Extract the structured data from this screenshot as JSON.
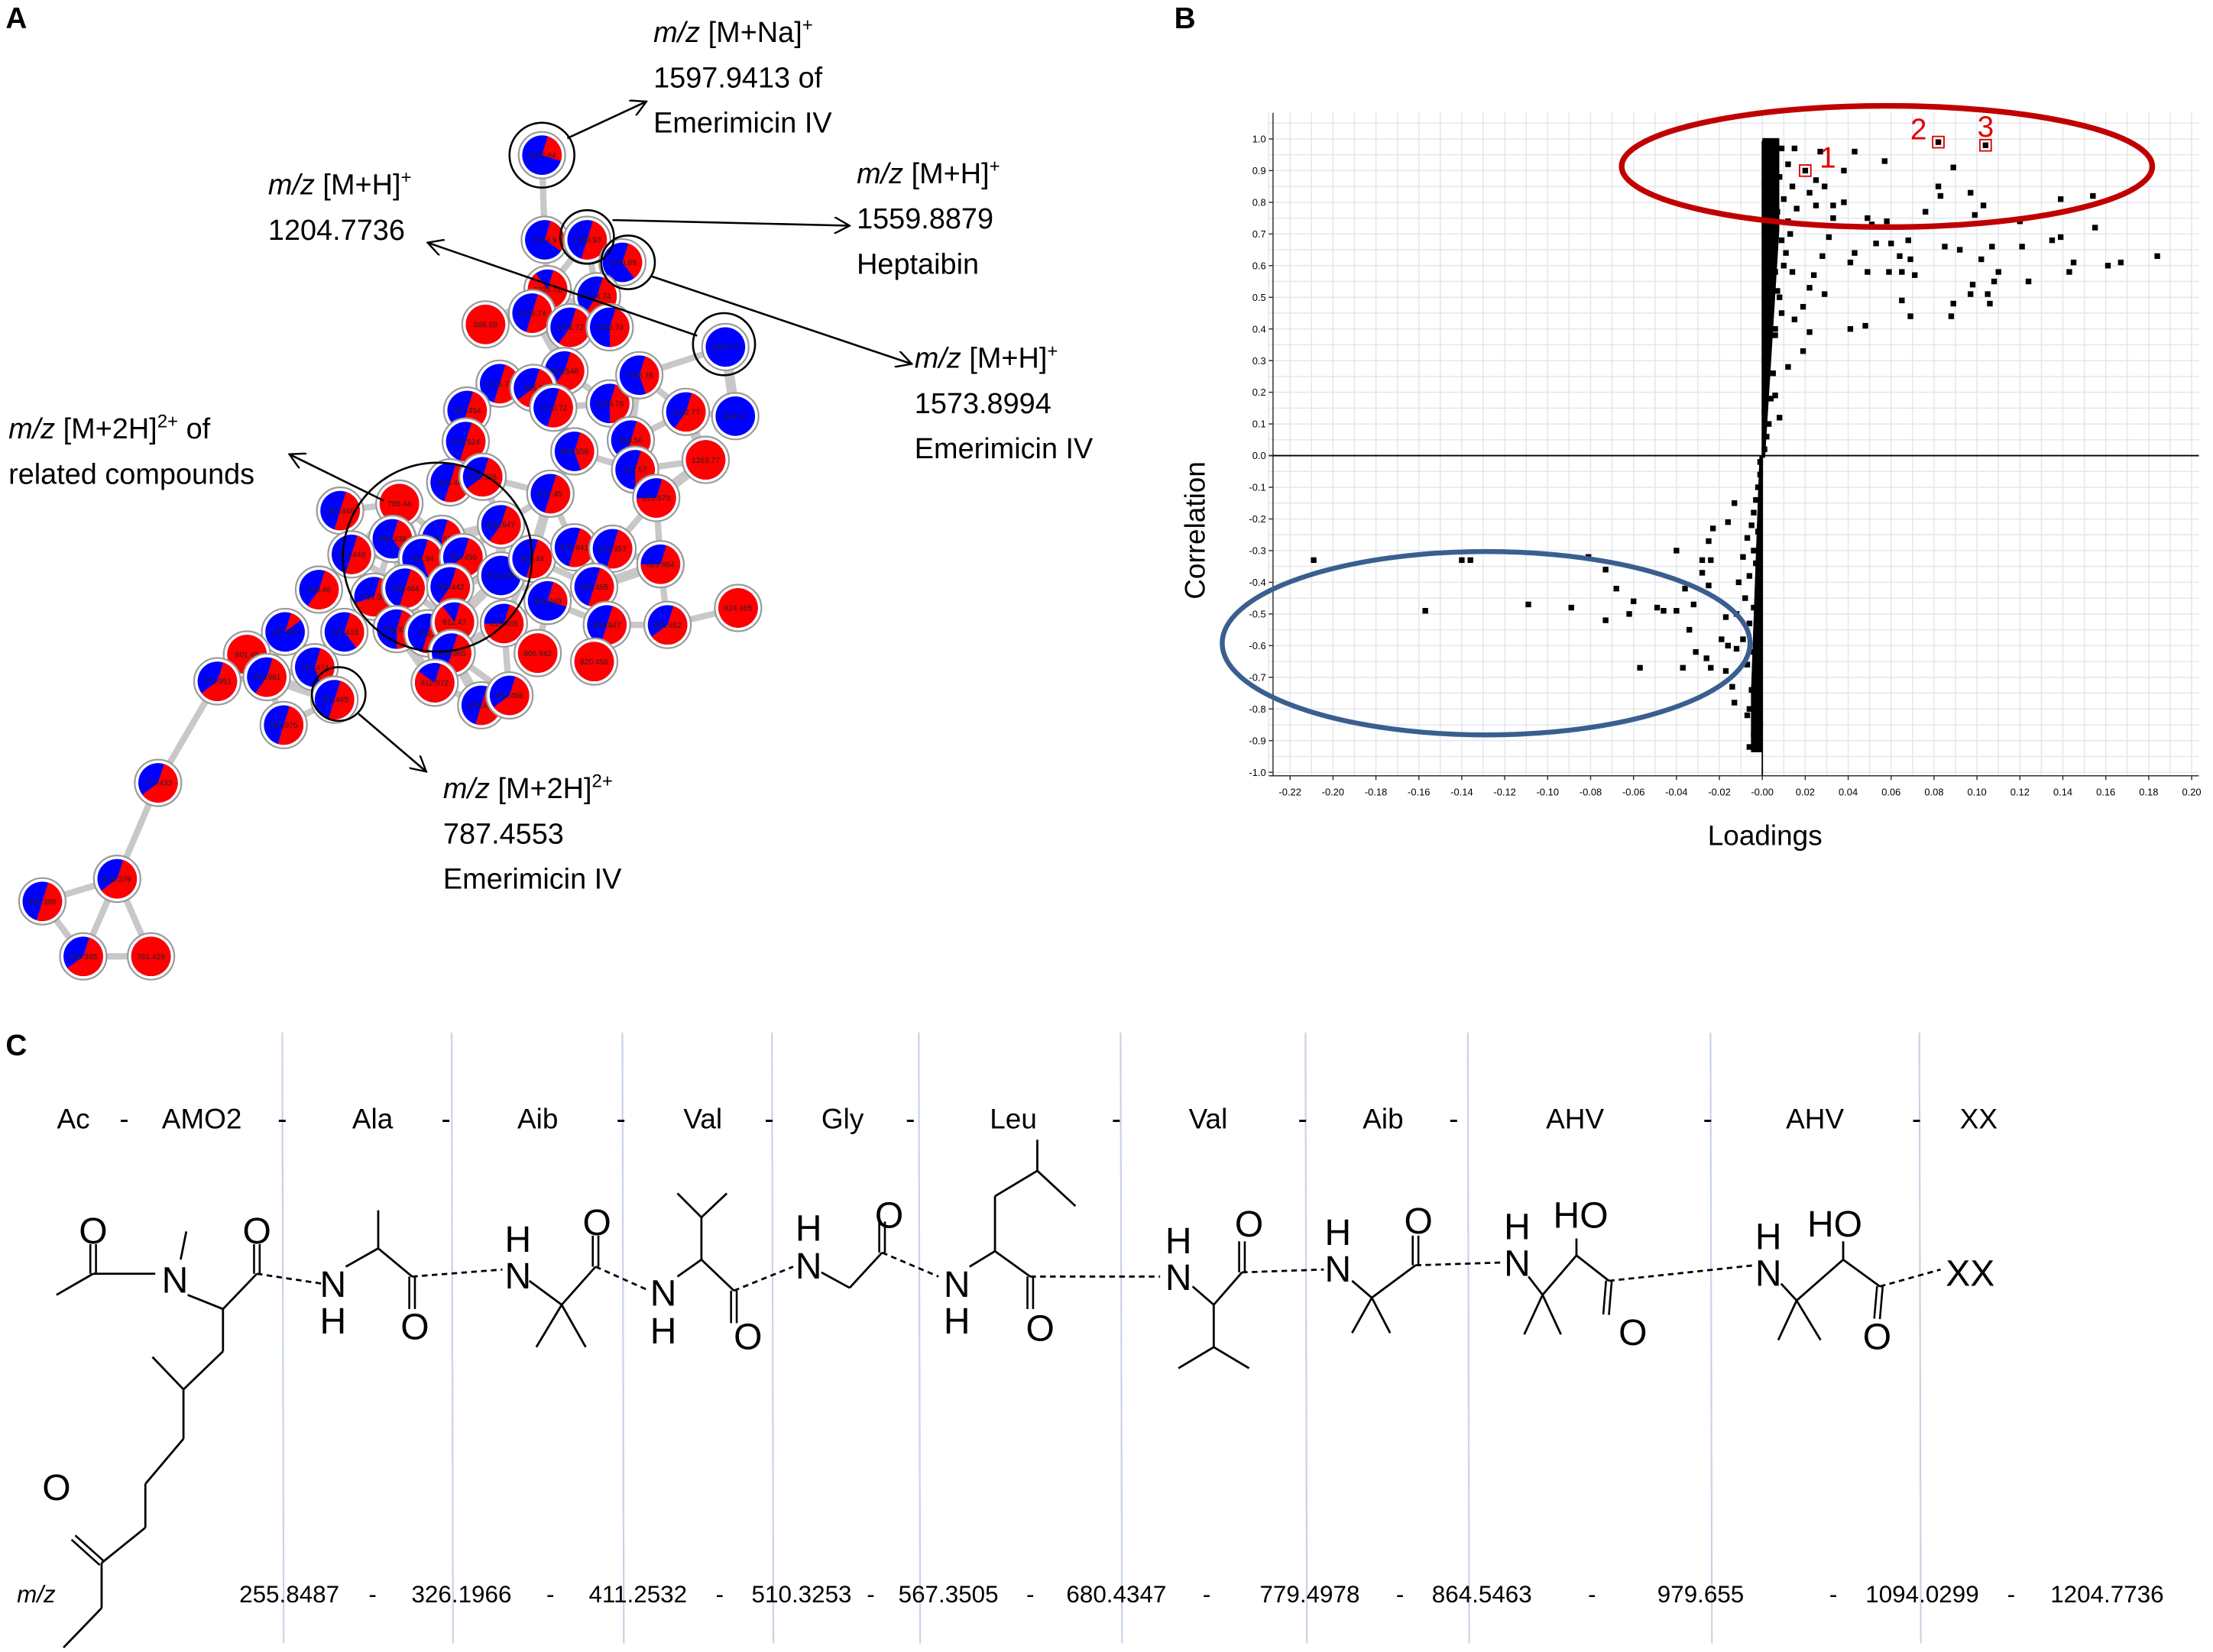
{
  "panels": {
    "a": "A",
    "b": "B",
    "c": "C"
  },
  "network": {
    "nodes": [
      {
        "label": "1597.94",
        "red": 0.25
      },
      {
        "label": "1574.9",
        "red": 0.3
      },
      {
        "label": "1559.93",
        "red": 0.5
      },
      {
        "label": "1573.89",
        "red": 0.35
      },
      {
        "label": "1226.72",
        "red": 0.85
      },
      {
        "label": "1224.74",
        "red": 0.55
      },
      {
        "label": "885.59",
        "red": 1.0
      },
      {
        "label": "1225.74",
        "red": 0.5
      },
      {
        "label": "1211.72",
        "red": 0.55
      },
      {
        "label": "1226.74",
        "red": 0.45
      },
      {
        "label": "1204.77",
        "red": 0.0
      },
      {
        "label": "884.546",
        "red": 0.55
      },
      {
        "label": "1211.72",
        "red": 0.5
      },
      {
        "label": "885.5",
        "red": 0.6
      },
      {
        "label": "1210.72",
        "red": 0.5
      },
      {
        "label": "1239.76",
        "red": 0.45
      },
      {
        "label": "1236.76",
        "red": 0.4
      },
      {
        "label": "1252.77",
        "red": 0.55
      },
      {
        "label": "864.57",
        "red": 0.0
      },
      {
        "label": "817.454",
        "red": 0.5
      },
      {
        "label": "870.524",
        "red": 0.5
      },
      {
        "label": "898.56",
        "red": 0.5
      },
      {
        "label": "809.558",
        "red": 0.4
      },
      {
        "label": "1263.77",
        "red": 1.0
      },
      {
        "label": "912.57",
        "red": 0.45
      },
      {
        "label": "913.673",
        "red": 0.7
      },
      {
        "label": "817.45",
        "red": 0.5
      },
      {
        "label": "803.44",
        "red": 0.5
      },
      {
        "label": "871.526",
        "red": 0.6
      },
      {
        "label": "785.44",
        "red": 1.0
      },
      {
        "label": "792.446",
        "red": 0.5
      },
      {
        "label": "802.947",
        "red": 0.55
      },
      {
        "label": "784.438",
        "red": 0.35
      },
      {
        "label": "799.933",
        "red": 0.45
      },
      {
        "label": "781.446",
        "red": 0.5
      },
      {
        "label": "784.94",
        "red": 0.4
      },
      {
        "label": "797.456",
        "red": 0.6
      },
      {
        "label": "813.498",
        "red": 0.0
      },
      {
        "label": "802.44",
        "red": 0.5
      },
      {
        "label": "813.941",
        "red": 0.5
      },
      {
        "label": "816.957",
        "red": 0.5
      },
      {
        "label": "823.964",
        "red": 0.7
      },
      {
        "label": "780.46",
        "red": 0.55
      },
      {
        "label": "791.95",
        "red": 0.65
      },
      {
        "label": "799.464",
        "red": 0.5
      },
      {
        "label": "799.442",
        "red": 0.55
      },
      {
        "label": "809.949",
        "red": 0.25
      },
      {
        "label": "816.455",
        "red": 0.5
      },
      {
        "label": "795.418",
        "red": 0.35
      },
      {
        "label": "795.934",
        "red": 0.45
      },
      {
        "label": "798.9",
        "red": 0.5
      },
      {
        "label": "812.47",
        "red": 0.85
      },
      {
        "label": "813.465",
        "red": 0.7
      },
      {
        "label": "806.947",
        "red": 0.5
      },
      {
        "label": "823.462",
        "red": 0.6
      },
      {
        "label": "824.465",
        "red": 1.0
      },
      {
        "label": "805.965",
        "red": 0.5
      },
      {
        "label": "806.942",
        "red": 1.0
      },
      {
        "label": "820.456",
        "red": 1.0
      },
      {
        "label": "812.972",
        "red": 0.8
      },
      {
        "label": "805.464",
        "red": 0.5
      },
      {
        "label": "800.456",
        "red": 0.6
      },
      {
        "label": "787.967",
        "red": 0.1
      },
      {
        "label": "801.48",
        "red": 1.0
      },
      {
        "label": "773.951",
        "red": 0.6
      },
      {
        "label": "780.961",
        "red": 0.55
      },
      {
        "label": "794.474",
        "red": 0.4
      },
      {
        "label": "787.465",
        "red": 0.5
      },
      {
        "label": "784.975",
        "red": 0.5
      },
      {
        "label": "773.433",
        "red": 0.6
      },
      {
        "label": "676.379",
        "red": 0.6
      },
      {
        "label": "691.396",
        "red": 0.5
      },
      {
        "label": "690.395",
        "red": 0.6
      },
      {
        "label": "761.429",
        "red": 1.0
      }
    ],
    "annotations": [
      {
        "mz": "m/z",
        "ion": " [M+Na]",
        "charge": "+",
        "l2": "1597.9413 of",
        "l3": "Emerimicin IV"
      },
      {
        "mz": "m/z",
        "ion": " [M+H]",
        "charge": "+",
        "l2": "1204.7736",
        "l3": ""
      },
      {
        "mz": "m/z",
        "ion": " [M+H]",
        "charge": "+",
        "l2": "1559.8879",
        "l3": "Heptaibin"
      },
      {
        "mz": "m/z",
        "ion": " [M+H]",
        "charge": "+",
        "l2": "1573.8994",
        "l3": "Emerimicin IV"
      },
      {
        "mz": "m/z",
        "ion": " [M+2H]",
        "charge": "2+",
        "suffix": " of",
        "l2": "related compounds",
        "l3": ""
      },
      {
        "mz": "m/z",
        "ion": " [M+2H]",
        "charge": "2+",
        "l2": "787.4553",
        "l3": "Emerimicin IV"
      }
    ],
    "colors": {
      "a": "#ff0000",
      "b": "#0000ff",
      "edge": "#c8c8c8"
    }
  },
  "chart_data": {
    "type": "scatter",
    "title": "",
    "xlabel": "Loadings",
    "ylabel": "Correlation",
    "xlim": [
      -0.23,
      0.2
    ],
    "ylim": [
      -1.0,
      1.05
    ],
    "grid": true,
    "xticks": [
      "-0.22",
      "-0.20",
      "-0.18",
      "-0.16",
      "-0.14",
      "-0.12",
      "-0.10",
      "-0.08",
      "-0.06",
      "-0.04",
      "-0.02",
      "-0.00",
      "0.02",
      "0.04",
      "0.06",
      "0.08",
      "0.10",
      "0.12",
      "0.14",
      "0.16",
      "0.18",
      "0.20"
    ],
    "yticks": [
      "1.0",
      "0.9",
      "0.8",
      "0.7",
      "0.6",
      "0.5",
      "0.4",
      "0.3",
      "0.2",
      "0.1",
      "0.0",
      "-0.1",
      "-0.2",
      "-0.3",
      "-0.4",
      "-0.5",
      "-0.6",
      "-0.7",
      "-0.8",
      "-0.9",
      "-1.0"
    ],
    "highlighted": [
      {
        "label": "1",
        "x": 0.02,
        "y": 0.9
      },
      {
        "label": "2",
        "x": 0.082,
        "y": 0.99
      },
      {
        "label": "3",
        "x": 0.104,
        "y": 0.98
      }
    ],
    "regions": [
      {
        "name": "positive-correlation",
        "color": "#c00000"
      },
      {
        "name": "negative-correlation",
        "color": "#3a5f8f"
      }
    ],
    "points": [
      [
        0.027,
        0.96
      ],
      [
        0.043,
        0.96
      ],
      [
        0.057,
        0.93
      ],
      [
        0.038,
        0.9
      ],
      [
        0.089,
        0.91
      ],
      [
        0.082,
        0.85
      ],
      [
        0.083,
        0.82
      ],
      [
        0.097,
        0.83
      ],
      [
        0.103,
        0.79
      ],
      [
        0.099,
        0.76
      ],
      [
        0.076,
        0.77
      ],
      [
        0.139,
        0.81
      ],
      [
        0.154,
        0.82
      ],
      [
        0.155,
        0.72
      ],
      [
        0.139,
        0.69
      ],
      [
        0.135,
        0.68
      ],
      [
        0.12,
        0.74
      ],
      [
        0.121,
        0.66
      ],
      [
        0.107,
        0.66
      ],
      [
        0.102,
        0.62
      ],
      [
        0.085,
        0.66
      ],
      [
        0.092,
        0.65
      ],
      [
        0.184,
        0.63
      ],
      [
        0.167,
        0.61
      ],
      [
        0.161,
        0.6
      ],
      [
        0.145,
        0.61
      ],
      [
        0.143,
        0.58
      ],
      [
        0.11,
        0.58
      ],
      [
        0.108,
        0.55
      ],
      [
        0.124,
        0.55
      ],
      [
        0.098,
        0.54
      ],
      [
        0.097,
        0.51
      ],
      [
        0.105,
        0.51
      ],
      [
        0.106,
        0.48
      ],
      [
        0.089,
        0.48
      ],
      [
        0.088,
        0.44
      ],
      [
        0.069,
        0.44
      ],
      [
        0.065,
        0.49
      ],
      [
        0.048,
        0.41
      ],
      [
        0.041,
        0.4
      ],
      [
        0.071,
        0.57
      ],
      [
        0.065,
        0.58
      ],
      [
        0.059,
        0.58
      ],
      [
        0.049,
        0.58
      ],
      [
        0.069,
        0.62
      ],
      [
        0.064,
        0.63
      ],
      [
        0.053,
        0.67
      ],
      [
        0.06,
        0.67
      ],
      [
        0.068,
        0.68
      ],
      [
        0.058,
        0.74
      ],
      [
        0.049,
        0.75
      ],
      [
        0.051,
        0.73
      ],
      [
        0.043,
        0.64
      ],
      [
        0.041,
        0.61
      ],
      [
        0.033,
        0.75
      ],
      [
        0.038,
        0.8
      ],
      [
        0.033,
        0.79
      ],
      [
        0.025,
        0.79
      ],
      [
        0.029,
        0.85
      ],
      [
        0.022,
        0.83
      ],
      [
        0.021,
        0.89
      ],
      [
        0.025,
        0.87
      ],
      [
        0.031,
        0.69
      ],
      [
        0.028,
        0.63
      ],
      [
        0.024,
        0.57
      ],
      [
        0.022,
        0.53
      ],
      [
        0.029,
        0.51
      ],
      [
        0.019,
        0.47
      ],
      [
        0.015,
        0.43
      ],
      [
        0.022,
        0.39
      ],
      [
        0.019,
        0.33
      ],
      [
        0.012,
        0.28
      ],
      [
        0.006,
        0.19
      ],
      [
        0.008,
        0.12
      ],
      [
        0.001,
        0.02
      ],
      [
        0.002,
        0.06
      ],
      [
        0.003,
        0.1
      ],
      [
        0.001,
        0.14
      ],
      [
        0.004,
        0.18
      ],
      [
        0.002,
        0.22
      ],
      [
        0.005,
        0.26
      ],
      [
        0.001,
        0.3
      ],
      [
        0.003,
        0.34
      ],
      [
        0.006,
        0.38
      ],
      [
        0.002,
        0.42
      ],
      [
        0.004,
        0.46
      ],
      [
        0.008,
        0.5
      ],
      [
        0.001,
        0.5
      ],
      [
        0.003,
        0.54
      ],
      [
        0.006,
        0.58
      ],
      [
        0.01,
        0.6
      ],
      [
        0.002,
        0.62
      ],
      [
        0.005,
        0.66
      ],
      [
        0.009,
        0.68
      ],
      [
        0.001,
        0.7
      ],
      [
        0.004,
        0.73
      ],
      [
        0.012,
        0.74
      ],
      [
        0.007,
        0.77
      ],
      [
        0.002,
        0.79
      ],
      [
        0.01,
        0.81
      ],
      [
        0.005,
        0.83
      ],
      [
        0.001,
        0.86
      ],
      [
        0.008,
        0.88
      ],
      [
        0.003,
        0.9
      ],
      [
        0.012,
        0.92
      ],
      [
        0.006,
        0.94
      ],
      [
        0.002,
        0.96
      ],
      [
        0.009,
        0.97
      ],
      [
        0.004,
        0.99
      ],
      [
        0.015,
        0.97
      ],
      [
        0.014,
        0.85
      ],
      [
        0.016,
        0.78
      ],
      [
        0.013,
        0.7
      ],
      [
        0.011,
        0.64
      ],
      [
        0.014,
        0.58
      ],
      [
        0.007,
        0.52
      ],
      [
        0.009,
        0.45
      ],
      [
        0.006,
        0.4
      ],
      [
        -0.209,
        -0.33
      ],
      [
        -0.14,
        -0.33
      ],
      [
        -0.136,
        -0.33
      ],
      [
        -0.157,
        -0.49
      ],
      [
        -0.109,
        -0.47
      ],
      [
        -0.089,
        -0.48
      ],
      [
        -0.081,
        -0.32
      ],
      [
        -0.073,
        -0.36
      ],
      [
        -0.068,
        -0.42
      ],
      [
        -0.06,
        -0.46
      ],
      [
        -0.062,
        -0.5
      ],
      [
        -0.073,
        -0.52
      ],
      [
        -0.057,
        -0.67
      ],
      [
        -0.049,
        -0.48
      ],
      [
        -0.046,
        -0.49
      ],
      [
        -0.04,
        -0.49
      ],
      [
        -0.04,
        -0.3
      ],
      [
        -0.036,
        -0.42
      ],
      [
        -0.034,
        -0.55
      ],
      [
        -0.031,
        -0.62
      ],
      [
        -0.037,
        -0.67
      ],
      [
        -0.026,
        -0.64
      ],
      [
        -0.024,
        -0.67
      ],
      [
        -0.028,
        -0.33
      ],
      [
        -0.024,
        -0.33
      ],
      [
        -0.025,
        -0.27
      ],
      [
        -0.023,
        -0.23
      ],
      [
        -0.016,
        -0.21
      ],
      [
        -0.013,
        -0.15
      ],
      [
        -0.014,
        -0.73
      ],
      [
        -0.013,
        -0.78
      ],
      [
        -0.007,
        -0.82
      ],
      [
        -0.006,
        -0.92
      ],
      [
        -0.001,
        -0.85
      ],
      [
        -0.028,
        -0.37
      ],
      [
        -0.032,
        -0.47
      ],
      [
        -0.025,
        -0.41
      ],
      [
        -0.017,
        -0.51
      ],
      [
        -0.019,
        -0.58
      ],
      [
        -0.016,
        -0.6
      ],
      [
        -0.017,
        -0.68
      ],
      [
        -0.012,
        -0.61
      ],
      [
        -0.001,
        -0.02
      ],
      [
        -0.001,
        -0.06
      ],
      [
        -0.002,
        -0.1
      ],
      [
        -0.003,
        -0.14
      ],
      [
        -0.004,
        -0.18
      ],
      [
        -0.005,
        -0.22
      ],
      [
        -0.002,
        -0.24
      ],
      [
        -0.007,
        -0.26
      ],
      [
        -0.004,
        -0.3
      ],
      [
        -0.009,
        -0.32
      ],
      [
        -0.003,
        -0.34
      ],
      [
        -0.006,
        -0.38
      ],
      [
        -0.011,
        -0.4
      ],
      [
        -0.002,
        -0.42
      ],
      [
        -0.008,
        -0.45
      ],
      [
        -0.004,
        -0.48
      ],
      [
        -0.012,
        -0.5
      ],
      [
        -0.006,
        -0.53
      ],
      [
        -0.002,
        -0.56
      ],
      [
        -0.009,
        -0.58
      ],
      [
        -0.004,
        -0.62
      ],
      [
        -0.007,
        -0.66
      ],
      [
        -0.002,
        -0.7
      ],
      [
        -0.005,
        -0.74
      ],
      [
        -0.003,
        -0.78
      ],
      [
        -0.006,
        -0.8
      ],
      [
        -0.002,
        -0.84
      ],
      [
        -0.004,
        -0.88
      ]
    ]
  },
  "structure": {
    "residues": [
      "Ac",
      "-",
      "AMO2",
      "-",
      "Ala",
      "-",
      "Aib",
      "-",
      "Val",
      "-",
      "Gly",
      "-",
      "Leu",
      "-",
      "Val",
      "-",
      "Aib",
      "-",
      "AHV",
      "-",
      "AHV",
      "-",
      "XX"
    ],
    "atoms": [
      "O",
      "N",
      "H",
      "HO",
      "XX"
    ],
    "mz_label": "m/z",
    "mz_values": [
      "255.8487",
      "-",
      "326.1966",
      "-",
      "411.2532",
      "-",
      "510.3253",
      "-",
      "567.3505",
      "-",
      "680.4347",
      "-",
      "779.4978",
      "-",
      "864.5463",
      "-",
      "979.655",
      "-",
      "1094.0299",
      "-",
      "1204.7736"
    ]
  }
}
